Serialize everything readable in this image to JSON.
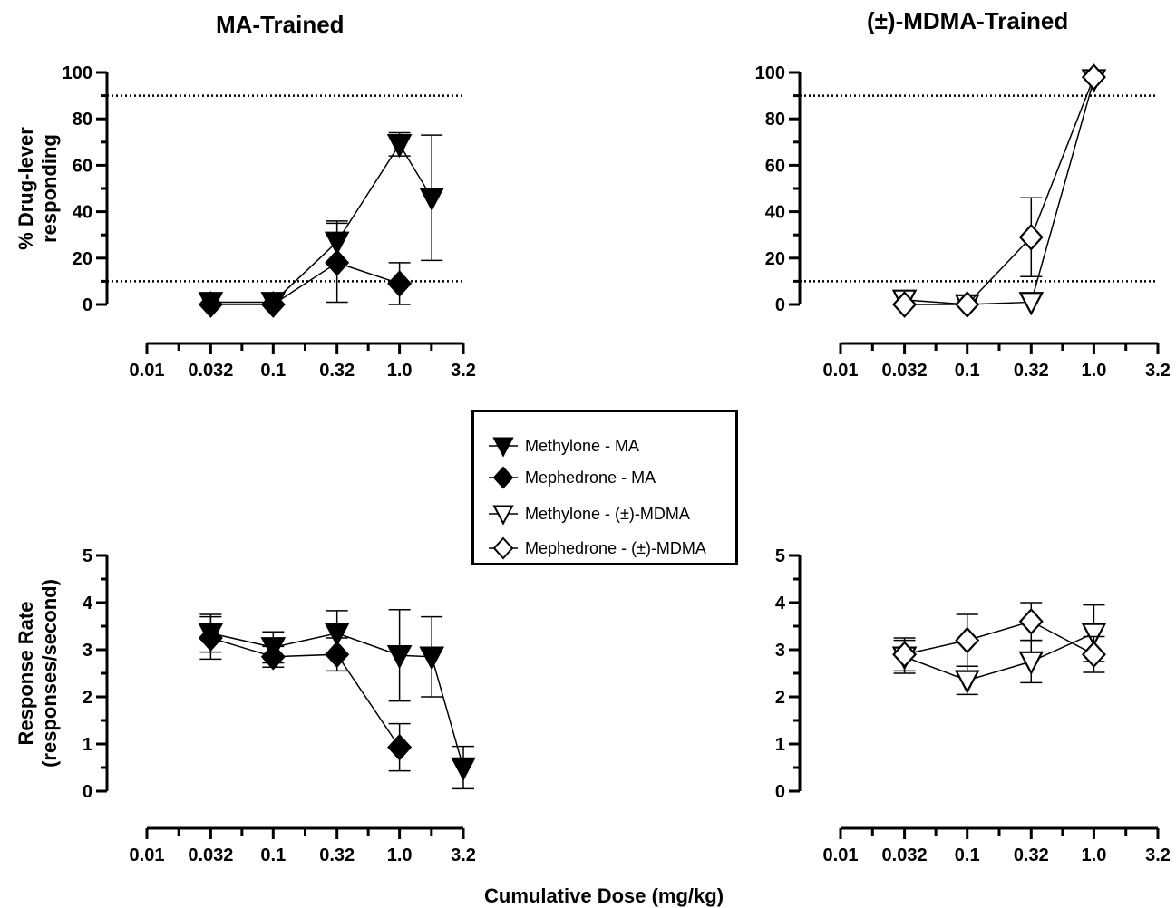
{
  "titles": {
    "left": "MA-Trained",
    "right": "(±)-MDMA-Trained"
  },
  "xlabel": "Cumulative Dose (mg/kg)",
  "legend": [
    {
      "label": "Methylone - MA",
      "marker": "triangle-down",
      "fill": "#000000"
    },
    {
      "label": "Mephedrone - MA",
      "marker": "diamond",
      "fill": "#000000"
    },
    {
      "label": "Methylone - (±)-MDMA",
      "marker": "triangle-down",
      "fill": "#ffffff"
    },
    {
      "label": "Mephedrone - (±)-MDMA",
      "marker": "diamond",
      "fill": "#ffffff"
    }
  ],
  "chart_data": [
    {
      "id": "ma-drug-lever",
      "type": "line",
      "title": "MA-Trained",
      "ylabel": [
        "% Drug-lever",
        "responding"
      ],
      "x_scale": "log",
      "xlim": [
        0.01,
        3.2
      ],
      "x_ticks": [
        "0.01",
        "0.032",
        "0.1",
        "0.32",
        "1.0",
        "3.2"
      ],
      "ylim": [
        0,
        100
      ],
      "y_ticks": [
        0,
        20,
        40,
        60,
        80,
        100
      ],
      "reference_lines": [
        10,
        90
      ],
      "series": [
        {
          "name": "Methylone - MA",
          "marker": "triangle-down",
          "fill": "#000000",
          "x": [
            0.032,
            0.1,
            0.32,
            1.0,
            1.8
          ],
          "y": [
            1,
            1,
            27,
            69,
            46
          ],
          "err": [
            0,
            0,
            9,
            5,
            27
          ]
        },
        {
          "name": "Mephedrone - MA",
          "marker": "diamond",
          "fill": "#000000",
          "x": [
            0.032,
            0.1,
            0.32,
            1.0
          ],
          "y": [
            0,
            0,
            18,
            9
          ],
          "err": [
            0,
            0,
            17,
            9
          ]
        }
      ]
    },
    {
      "id": "mdma-drug-lever",
      "type": "line",
      "title": "(±)-MDMA-Trained",
      "ylabel": [],
      "x_scale": "log",
      "xlim": [
        0.01,
        3.2
      ],
      "x_ticks": [
        "0.01",
        "0.032",
        "0.1",
        "0.32",
        "1.0",
        "3.2"
      ],
      "ylim": [
        0,
        100
      ],
      "y_ticks": [
        0,
        20,
        40,
        60,
        80,
        100
      ],
      "reference_lines": [
        10,
        90
      ],
      "series": [
        {
          "name": "Methylone - (±)-MDMA",
          "marker": "triangle-down",
          "fill": "#ffffff",
          "x": [
            0.032,
            0.1,
            0.32,
            1.0
          ],
          "y": [
            2,
            0,
            1,
            97
          ],
          "err": [
            0,
            0,
            0,
            0
          ]
        },
        {
          "name": "Mephedrone - (±)-MDMA",
          "marker": "diamond",
          "fill": "#ffffff",
          "x": [
            0.032,
            0.1,
            0.32,
            1.0
          ],
          "y": [
            0,
            0,
            29,
            98
          ],
          "err": [
            0,
            0,
            17,
            0
          ]
        }
      ]
    },
    {
      "id": "ma-response-rate",
      "type": "line",
      "ylabel": [
        "Response Rate",
        "(responses/second)"
      ],
      "x_scale": "log",
      "xlim": [
        0.01,
        3.2
      ],
      "x_ticks": [
        "0.01",
        "0.032",
        "0.1",
        "0.32",
        "1.0",
        "3.2"
      ],
      "ylim": [
        0,
        5
      ],
      "y_ticks": [
        0,
        1,
        2,
        3,
        4,
        5
      ],
      "reference_lines": [],
      "series": [
        {
          "name": "Methylone - MA",
          "marker": "triangle-down",
          "fill": "#000000",
          "x": [
            0.032,
            0.1,
            0.32,
            1.0,
            1.8,
            3.2
          ],
          "y": [
            3.35,
            3.05,
            3.35,
            2.88,
            2.85,
            0.5
          ],
          "err": [
            0.4,
            0.33,
            0.48,
            0.97,
            0.85,
            0.45
          ]
        },
        {
          "name": "Mephedrone - MA",
          "marker": "diamond",
          "fill": "#000000",
          "x": [
            0.032,
            0.1,
            0.32,
            1.0
          ],
          "y": [
            3.25,
            2.85,
            2.9,
            0.93
          ],
          "err": [
            0.45,
            0.22,
            0.35,
            0.5
          ]
        }
      ]
    },
    {
      "id": "mdma-response-rate",
      "type": "line",
      "ylabel": [],
      "x_scale": "log",
      "xlim": [
        0.01,
        3.2
      ],
      "x_ticks": [
        "0.01",
        "0.032",
        "0.1",
        "0.32",
        "1.0",
        "3.2"
      ],
      "ylim": [
        0,
        5
      ],
      "y_ticks": [
        0,
        1,
        2,
        3,
        4,
        5
      ],
      "reference_lines": [],
      "series": [
        {
          "name": "Methylone - (±)-MDMA",
          "marker": "triangle-down",
          "fill": "#ffffff",
          "x": [
            0.032,
            0.1,
            0.32,
            1.0
          ],
          "y": [
            2.85,
            2.35,
            2.75,
            3.35
          ],
          "err": [
            0.35,
            0.3,
            0.45,
            0.6
          ]
        },
        {
          "name": "Mephedrone - (±)-MDMA",
          "marker": "diamond",
          "fill": "#ffffff",
          "x": [
            0.032,
            0.1,
            0.32,
            1.0
          ],
          "y": [
            2.9,
            3.2,
            3.6,
            2.9
          ],
          "err": [
            0.35,
            0.55,
            0.4,
            0.38
          ]
        }
      ]
    }
  ]
}
